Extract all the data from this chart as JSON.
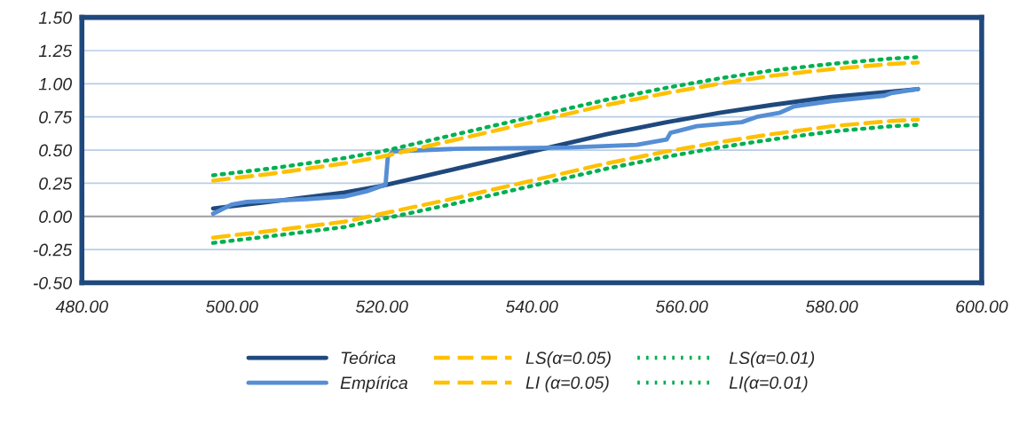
{
  "chart_data": {
    "type": "line",
    "xlim": [
      480,
      600
    ],
    "xticks": [
      {
        "value": 480,
        "label": "480.00"
      },
      {
        "value": 500,
        "label": "500.00"
      },
      {
        "value": 520,
        "label": "520.00"
      },
      {
        "value": 540,
        "label": "540.00"
      },
      {
        "value": 560,
        "label": "560.00"
      },
      {
        "value": 580,
        "label": "580.00"
      },
      {
        "value": 600,
        "label": "600.00"
      }
    ],
    "ylim": [
      -0.5,
      1.5
    ],
    "yticks": [
      {
        "value": -0.5,
        "label": "-0.50"
      },
      {
        "value": -0.25,
        "label": "-0.25"
      },
      {
        "value": 0,
        "label": "0.00"
      },
      {
        "value": 0.25,
        "label": "0.25"
      },
      {
        "value": 0.5,
        "label": "0.50"
      },
      {
        "value": 0.75,
        "label": "0.75"
      },
      {
        "value": 1.0,
        "label": "1.00"
      },
      {
        "value": 1.25,
        "label": "1.25"
      },
      {
        "value": 1.5,
        "label": "1.50"
      }
    ],
    "grid": "y",
    "legend": "bottom",
    "marker": "none",
    "ref_lines": [
      {
        "axis": "y",
        "value": 0,
        "color": "#a0a0a0"
      }
    ],
    "series": [
      {
        "name": "Teórica",
        "color": "#1f497d",
        "line_style": "solid",
        "x": [
          497.5,
          505,
          515,
          520,
          530,
          540,
          550,
          558,
          565,
          572,
          580,
          588,
          591.5
        ],
        "values": [
          0.06,
          0.11,
          0.18,
          0.23,
          0.36,
          0.49,
          0.62,
          0.71,
          0.78,
          0.84,
          0.9,
          0.94,
          0.96
        ]
      },
      {
        "name": "Empírica",
        "color": "#558ed5",
        "line_style": "solid",
        "x": [
          497.5,
          500,
          502,
          510,
          515,
          518,
          520.5,
          520.8,
          521.5,
          530,
          545,
          554,
          556,
          558,
          558.5,
          562,
          568,
          570,
          573,
          575,
          580,
          587,
          588,
          591.5
        ],
        "values": [
          0.02,
          0.09,
          0.11,
          0.13,
          0.15,
          0.19,
          0.24,
          0.45,
          0.49,
          0.51,
          0.52,
          0.54,
          0.56,
          0.58,
          0.63,
          0.68,
          0.71,
          0.75,
          0.78,
          0.83,
          0.87,
          0.91,
          0.93,
          0.96
        ]
      },
      {
        "name": "LS(α=0.05)",
        "color": "#ffc000",
        "line_style": "dashed",
        "x": [
          497.5,
          505,
          515,
          520,
          530,
          540,
          550,
          558,
          565,
          572,
          580,
          588,
          591.5
        ],
        "values": [
          0.27,
          0.32,
          0.4,
          0.45,
          0.58,
          0.71,
          0.84,
          0.93,
          1.0,
          1.06,
          1.11,
          1.15,
          1.16
        ]
      },
      {
        "name": "LI (α=0.05)",
        "color": "#ffc000",
        "line_style": "dashed",
        "x": [
          497.5,
          505,
          515,
          520,
          530,
          540,
          550,
          558,
          565,
          572,
          580,
          588,
          591.5
        ],
        "values": [
          -0.16,
          -0.11,
          -0.04,
          0.02,
          0.14,
          0.27,
          0.4,
          0.49,
          0.56,
          0.62,
          0.68,
          0.72,
          0.73
        ]
      },
      {
        "name": "LS(α=0.01)",
        "color": "#00b050",
        "line_style": "dotted",
        "x": [
          497.5,
          505,
          515,
          520,
          530,
          540,
          550,
          558,
          565,
          572,
          580,
          588,
          591.5
        ],
        "values": [
          0.31,
          0.36,
          0.44,
          0.49,
          0.62,
          0.75,
          0.88,
          0.97,
          1.04,
          1.1,
          1.15,
          1.19,
          1.2
        ]
      },
      {
        "name": "LI(α=0.01)",
        "color": "#00b050",
        "line_style": "dotted",
        "x": [
          497.5,
          505,
          515,
          520,
          530,
          540,
          550,
          558,
          565,
          572,
          580,
          588,
          591.5
        ],
        "values": [
          -0.2,
          -0.15,
          -0.08,
          -0.02,
          0.1,
          0.23,
          0.36,
          0.45,
          0.52,
          0.58,
          0.64,
          0.68,
          0.69
        ]
      }
    ]
  }
}
